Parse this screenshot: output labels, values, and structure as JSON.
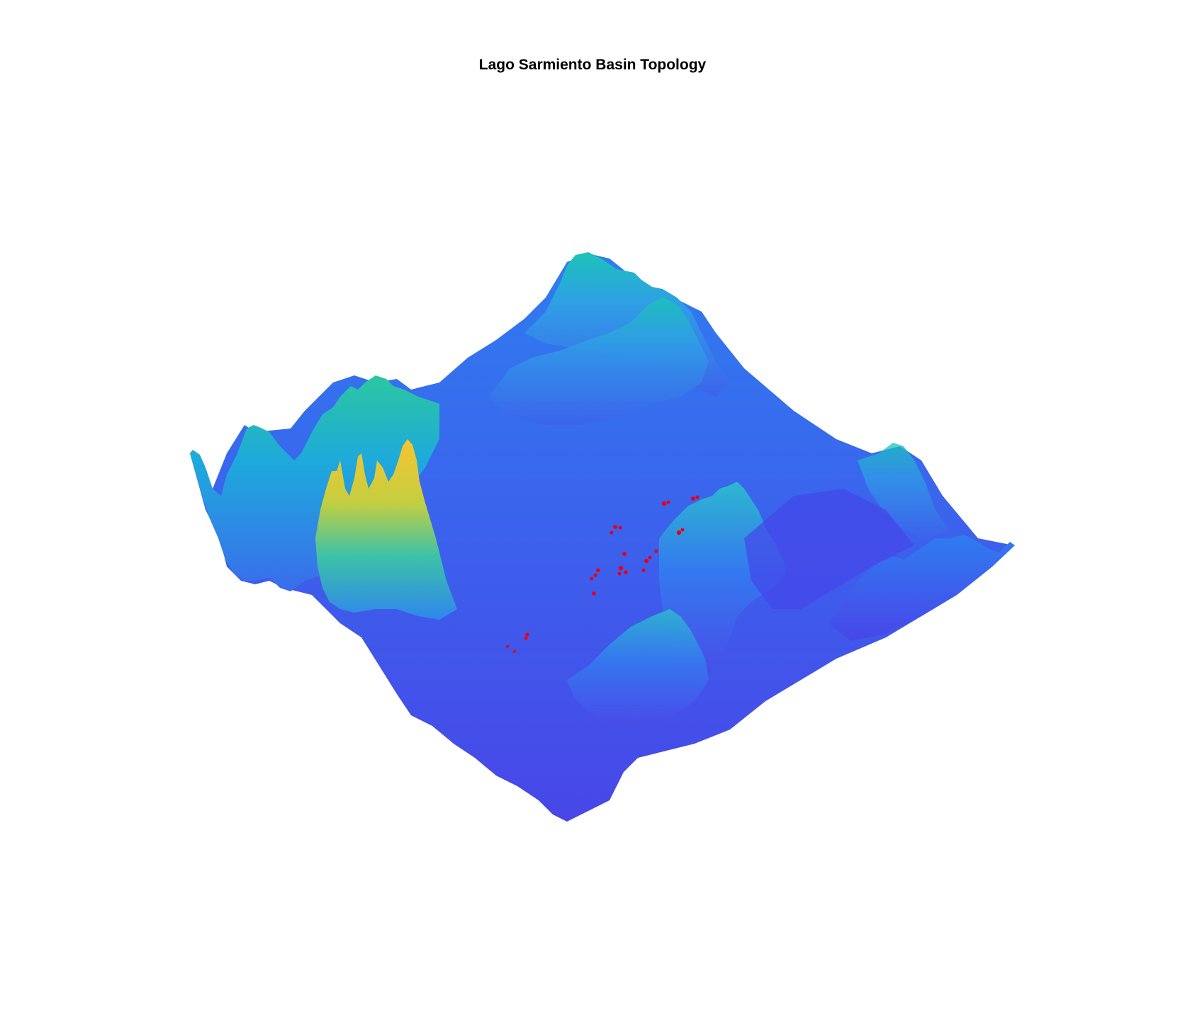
{
  "figure": {
    "title": "Lago Sarmiento Basin Topology"
  },
  "surface": {
    "colormap": [
      "#4846e8",
      "#2f7cf0",
      "#1fb0d8",
      "#1cc3b8",
      "#9ad04a",
      "#f5c637",
      "#f9c330"
    ],
    "marker_color": "#e4001b"
  }
}
